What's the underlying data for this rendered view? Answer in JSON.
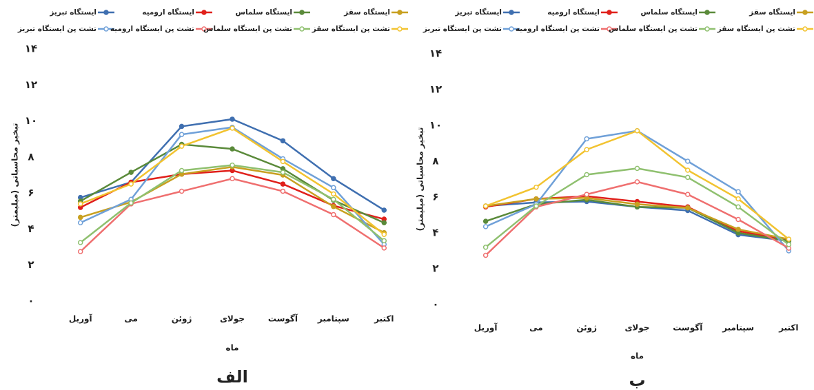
{
  "chart_data": [
    {
      "type": "line",
      "caption": "الف",
      "x_label": "ماه",
      "y_label": "تبخیر محاسباتی (میلیمتر)",
      "categories": [
        "آوریل",
        "می",
        "ژوئن",
        "جولای",
        "آگوست",
        "سپتامبر",
        "اکتبر"
      ],
      "ylim": [
        0,
        14
      ],
      "yticks": [
        {
          "value": 0,
          "label": "۰"
        },
        {
          "value": 2,
          "label": "۲"
        },
        {
          "value": 4,
          "label": "۴"
        },
        {
          "value": 6,
          "label": "۶"
        },
        {
          "value": 8,
          "label": "۸"
        },
        {
          "value": 10,
          "label": "۱۰"
        },
        {
          "value": 12,
          "label": "۱۲"
        },
        {
          "value": 14,
          "label": "۱۴"
        }
      ],
      "series": [
        {
          "name": "ایستگاه تبریز",
          "color": "#3f6fb0",
          "marker": "filled",
          "values": [
            5.75,
            6.6,
            9.7,
            10.1,
            8.9,
            6.8,
            5.05
          ]
        },
        {
          "name": "ایستگاه ارومیه",
          "color": "#e0201b",
          "marker": "filled",
          "values": [
            5.2,
            6.6,
            7.05,
            7.25,
            6.5,
            5.3,
            4.55
          ]
        },
        {
          "name": "ایستگاه سلماس",
          "color": "#5a8a3a",
          "marker": "filled",
          "values": [
            5.55,
            7.15,
            8.7,
            8.45,
            7.35,
            5.6,
            4.35
          ]
        },
        {
          "name": "ایستگاه سقز",
          "color": "#c8a020",
          "marker": "filled",
          "values": [
            4.65,
            5.5,
            7.05,
            7.45,
            7.0,
            5.25,
            3.8
          ]
        },
        {
          "name": "تشت پن ایستگاه تبریز",
          "color": "#6fa0d8",
          "marker": "hollow",
          "values": [
            4.35,
            5.65,
            9.25,
            9.65,
            7.9,
            6.3,
            3.15
          ]
        },
        {
          "name": "تشت پن ایستگاه ارومیه",
          "color": "#ef6f6f",
          "marker": "hollow",
          "values": [
            2.75,
            5.4,
            6.1,
            6.8,
            6.1,
            4.8,
            2.95
          ]
        },
        {
          "name": "تشت پن ایستگاه سلماس",
          "color": "#8fc06f",
          "marker": "hollow",
          "values": [
            3.25,
            5.45,
            7.25,
            7.55,
            7.15,
            5.65,
            3.35
          ]
        },
        {
          "name": "تشت پن ایستگاه سقز",
          "color": "#f2c330",
          "marker": "hollow",
          "values": [
            5.4,
            6.5,
            8.6,
            9.6,
            7.75,
            5.95,
            3.7
          ]
        }
      ]
    },
    {
      "type": "line",
      "caption": "ب",
      "x_label": "ماه",
      "y_label": "تبخیر محاسباتی (میلیمتر)",
      "categories": [
        "آوریل",
        "می",
        "ژوئن",
        "جولای",
        "آگوست",
        "سپتامبر",
        "اکتبر"
      ],
      "ylim": [
        0,
        14
      ],
      "yticks": [
        {
          "value": 0,
          "label": "۰"
        },
        {
          "value": 2,
          "label": "۲"
        },
        {
          "value": 4,
          "label": "۴"
        },
        {
          "value": 6,
          "label": "۶"
        },
        {
          "value": 8,
          "label": "۸"
        },
        {
          "value": 10,
          "label": "۱۰"
        },
        {
          "value": 12,
          "label": "۱۲"
        },
        {
          "value": 14,
          "label": "۱۴"
        }
      ],
      "series": [
        {
          "name": "ایستگاه تبریز",
          "color": "#3f6fb0",
          "marker": "filled",
          "values": [
            5.5,
            5.7,
            5.75,
            5.45,
            5.25,
            3.9,
            3.55
          ]
        },
        {
          "name": "ایستگاه ارومیه",
          "color": "#e0201b",
          "marker": "filled",
          "values": [
            5.45,
            5.9,
            6.05,
            5.75,
            5.45,
            4.1,
            3.6
          ]
        },
        {
          "name": "ایستگاه سلماس",
          "color": "#5a8a3a",
          "marker": "filled",
          "values": [
            4.65,
            5.6,
            5.85,
            5.45,
            5.4,
            4.0,
            3.55
          ]
        },
        {
          "name": "ایستگاه سقز",
          "color": "#c8a020",
          "marker": "filled",
          "values": [
            5.5,
            5.9,
            5.95,
            5.6,
            5.4,
            4.2,
            3.65
          ]
        },
        {
          "name": "تشت پن ایستگاه تبریز",
          "color": "#6fa0d8",
          "marker": "hollow",
          "values": [
            4.35,
            5.6,
            9.25,
            9.7,
            8.0,
            6.3,
            3.0
          ]
        },
        {
          "name": "تشت پن ایستگاه ارومیه",
          "color": "#ef6f6f",
          "marker": "hollow",
          "values": [
            2.75,
            5.45,
            6.15,
            6.85,
            6.15,
            4.75,
            3.15
          ]
        },
        {
          "name": "تشت پن ایستگاه سلماس",
          "color": "#8fc06f",
          "marker": "hollow",
          "values": [
            3.2,
            5.5,
            7.25,
            7.6,
            7.1,
            5.45,
            3.35
          ]
        },
        {
          "name": "تشت پن ایستگاه سقز",
          "color": "#f2c330",
          "marker": "hollow",
          "values": [
            5.5,
            6.55,
            8.65,
            9.7,
            7.5,
            5.9,
            3.65
          ]
        }
      ]
    }
  ]
}
